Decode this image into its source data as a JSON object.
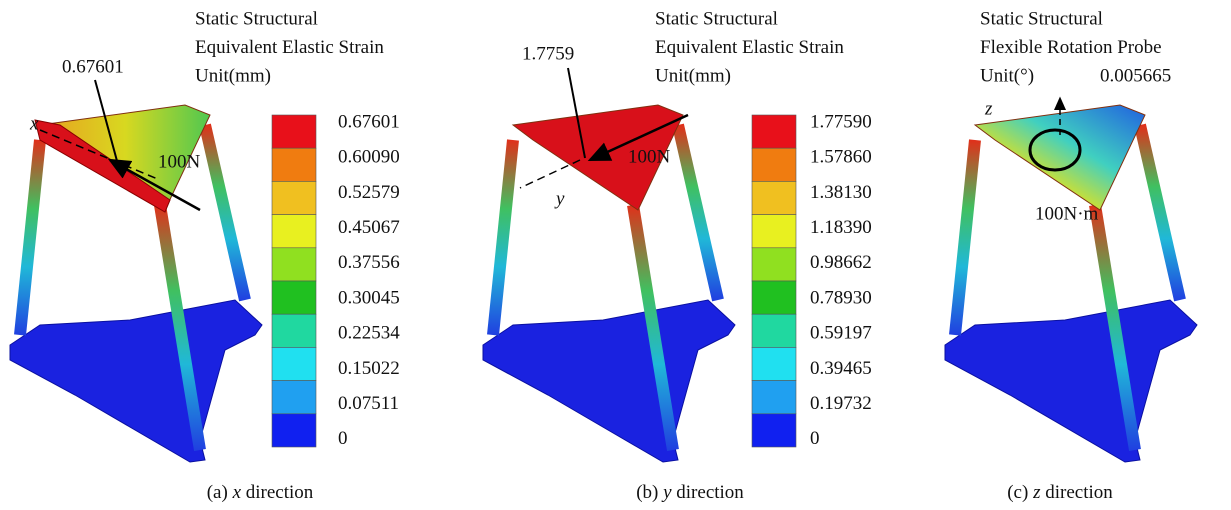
{
  "panels": [
    {
      "title_lines": [
        "Static Structural",
        "Equivalent Elastic Strain",
        "Unit(mm)"
      ],
      "max_label": "0.67601",
      "load": "100N",
      "axis": "x",
      "legend_labels": [
        "0.67601",
        "0.60090",
        "0.52579",
        "0.45067",
        "0.37556",
        "0.30045",
        "0.22534",
        "0.15022",
        "0.07511",
        "0"
      ],
      "caption": {
        "prefix": "(a)",
        "axis": "x",
        "suffix": "direction"
      }
    },
    {
      "title_lines": [
        "Static Structural",
        "Equivalent Elastic Strain",
        "Unit(mm)"
      ],
      "max_label": "1.7759",
      "load": "100N",
      "axis": "y",
      "legend_labels": [
        "1.77590",
        "1.57860",
        "1.38130",
        "1.18390",
        "0.98662",
        "0.78930",
        "0.59197",
        "0.39465",
        "0.19732",
        "0"
      ],
      "caption": {
        "prefix": "(b)",
        "axis": "y",
        "suffix": "direction"
      }
    },
    {
      "title_lines": [
        "Static Structural",
        "Flexible Rotation Probe",
        "Unit(°)"
      ],
      "max_label": "0.005665",
      "load": "100N·m",
      "axis": "z",
      "caption": {
        "prefix": "(c)",
        "axis": "z",
        "suffix": "direction"
      }
    }
  ],
  "legend_colors": [
    "#e8101a",
    "#f07c10",
    "#f0c020",
    "#e8f020",
    "#90e020",
    "#20c020",
    "#20d8a0",
    "#20e0f0",
    "#20a0f0",
    "#1020f0"
  ]
}
